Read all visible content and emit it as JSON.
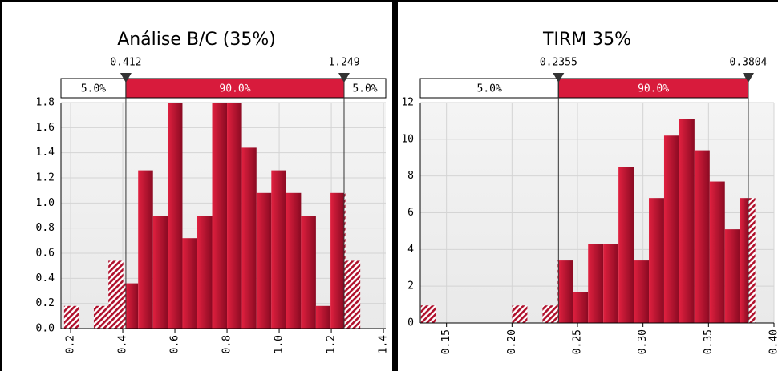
{
  "chart_data": [
    {
      "type": "histogram",
      "title": "Análise B/C (35%)",
      "bins": [
        0.175,
        0.232,
        0.289,
        0.345,
        0.402,
        0.459,
        0.516,
        0.573,
        0.629,
        0.686,
        0.743,
        0.8,
        0.857,
        0.913,
        0.97,
        1.027,
        1.084,
        1.141,
        1.197,
        1.254,
        1.311
      ],
      "values": [
        0.18,
        0,
        0.18,
        0.54,
        0.36,
        1.26,
        0.9,
        1.8,
        0.72,
        0.9,
        1.8,
        1.8,
        1.44,
        1.08,
        1.26,
        1.08,
        0.9,
        0.18,
        1.08,
        0.54
      ],
      "color": "#c8102e",
      "xlim": [
        0.163,
        1.409
      ],
      "ylim": [
        0,
        1.8
      ],
      "xticks": [
        0.2,
        0.4,
        0.6,
        0.8,
        {
          "value": 1,
          "label": "1.0"
        },
        1.2,
        1.4
      ],
      "yticks": [
        {
          "value": 0,
          "label": "0.0"
        },
        0.2,
        0.4,
        0.6,
        0.8,
        {
          "value": 1,
          "label": "1.0"
        },
        1.2,
        1.4,
        1.6,
        1.8
      ],
      "markers": [
        0.412,
        1.249
      ],
      "band_labels": [
        {
          "value": 5,
          "label": "5.0%"
        },
        {
          "value": 90,
          "label": "90.0%"
        },
        {
          "value": 5,
          "label": "5.0%"
        }
      ],
      "grid": true
    },
    {
      "type": "histogram",
      "title": "TIRM 35%",
      "bins": [
        0.1305,
        0.1421,
        0.1537,
        0.1653,
        0.1769,
        0.1885,
        0.2001,
        0.2117,
        0.2233,
        0.2349,
        0.2465,
        0.2581,
        0.2697,
        0.2813,
        0.2929,
        0.3045,
        0.3161,
        0.3277,
        0.3393,
        0.3509,
        0.3625,
        0.3741,
        0.3857
      ],
      "values": [
        0.95,
        0,
        0,
        0,
        0,
        0,
        0.95,
        0,
        0.95,
        3.4,
        1.7,
        4.3,
        4.3,
        8.5,
        3.4,
        6.8,
        10.2,
        11.1,
        9.4,
        7.7,
        5.1,
        6.8
      ],
      "color": "#c8102e",
      "xlim": [
        0.13,
        0.4
      ],
      "ylim": [
        0,
        12
      ],
      "xticks": [
        0.15,
        {
          "value": 0.2,
          "label": "0.20"
        },
        0.25,
        {
          "value": 0.3,
          "label": "0.30"
        },
        0.35,
        {
          "value": 0.4,
          "label": "0.40"
        }
      ],
      "yticks": [
        0,
        2,
        4,
        6,
        8,
        10,
        12
      ],
      "markers": [
        0.2355,
        0.3804
      ],
      "band_labels": [
        {
          "value": 5,
          "label": "5.0%"
        },
        {
          "value": 90,
          "label": "90.0%"
        }
      ],
      "grid": true
    }
  ]
}
